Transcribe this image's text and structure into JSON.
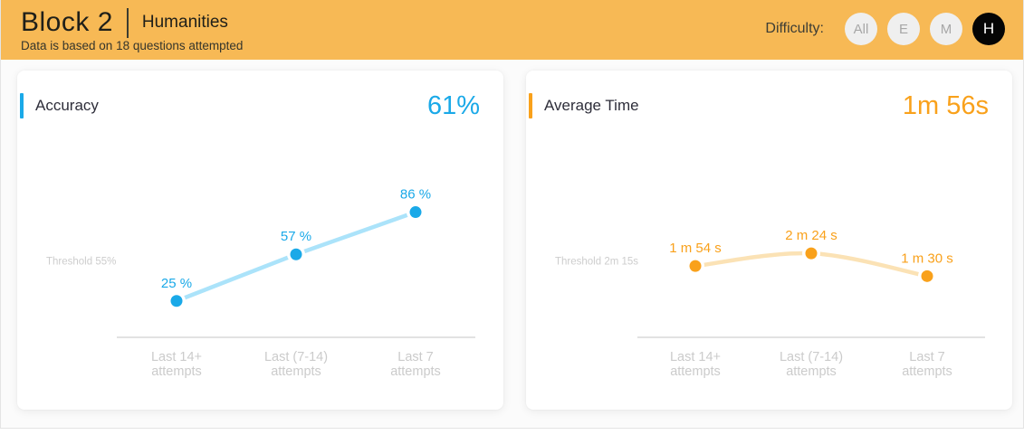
{
  "header": {
    "title": "Block 2",
    "subject": "Humanities",
    "subtitle": "Data is based on 18 questions attempted",
    "difficulty": {
      "label": "Difficulty:",
      "options": [
        {
          "label": "All",
          "selected": false
        },
        {
          "label": "E",
          "selected": false
        },
        {
          "label": "M",
          "selected": false
        },
        {
          "label": "H",
          "selected": true
        }
      ],
      "selected_bg": "#050505",
      "unselected_bg": "#efefef"
    },
    "background_color": "#F7B955"
  },
  "accuracy_card": {
    "title": "Accuracy",
    "value": "61%",
    "accent_color": "#1AA9E8"
  },
  "average_time_card": {
    "title": "Average Time",
    "value": "1m 56s",
    "accent_color": "#F9A11B"
  },
  "chart_data": [
    {
      "id": "accuracy",
      "type": "line",
      "title": "Accuracy",
      "categories": [
        "Last 14+ attempts",
        "Last (7-14) attempts",
        "Last 7 attempts"
      ],
      "tick_lines": [
        [
          "Last 14+",
          "attempts"
        ],
        [
          "Last (7-14)",
          "attempts"
        ],
        [
          "Last 7",
          "attempts"
        ]
      ],
      "values": [
        25,
        57,
        86
      ],
      "point_labels": [
        "25 %",
        "57 %",
        "86 %"
      ],
      "unit": "%",
      "threshold": 55,
      "threshold_label": "Threshold 55%",
      "ylim": [
        0,
        100
      ],
      "curve": "straight",
      "grid": false,
      "line_color": "#ABE3FA",
      "point_color": "#1AA9E8",
      "axis_color": "#c4c4c4",
      "tick_color": "#cbcbcb",
      "threshold_text_color": "#cdcdcd"
    },
    {
      "id": "average_time",
      "type": "line",
      "title": "Average Time",
      "categories": [
        "Last 14+ attempts",
        "Last (7-14) attempts",
        "Last 7 attempts"
      ],
      "tick_lines": [
        [
          "Last 14+",
          "attempts"
        ],
        [
          "Last (7-14)",
          "attempts"
        ],
        [
          "Last 7",
          "attempts"
        ]
      ],
      "values": [
        114,
        144,
        90
      ],
      "point_labels": [
        "1 m 54 s",
        "2 m 24 s",
        "1 m 30 s"
      ],
      "unit": "seconds",
      "threshold": 135,
      "threshold_label": "Threshold 2m 15s",
      "ylim": [
        -55,
        290
      ],
      "curve": "smooth",
      "grid": false,
      "line_color": "#FBE2B5",
      "point_color": "#F9A11B",
      "axis_color": "#c4c4c4",
      "tick_color": "#cbcbcb",
      "threshold_text_color": "#cdcdcd"
    }
  ]
}
